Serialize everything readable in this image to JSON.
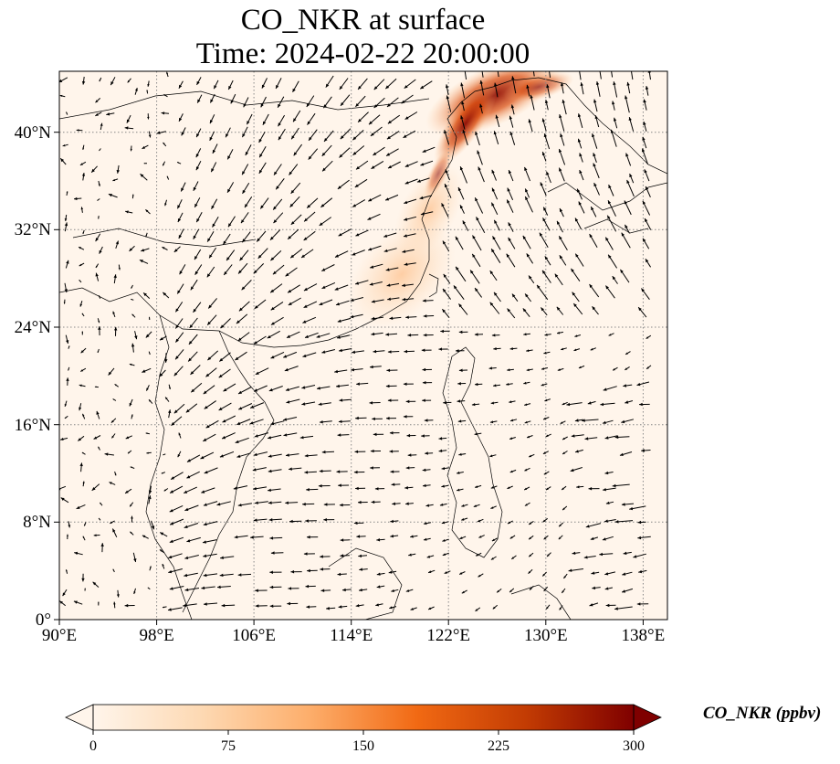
{
  "title": {
    "line1": "CO_NKR at surface",
    "line2": "Time: 2024-02-22 20:00:00"
  },
  "map": {
    "lon_range": [
      90,
      140
    ],
    "lat_range": [
      0,
      45
    ],
    "x_ticks": [
      {
        "value": 90,
        "label": "90°E"
      },
      {
        "value": 98,
        "label": "98°E"
      },
      {
        "value": 106,
        "label": "106°E"
      },
      {
        "value": 114,
        "label": "114°E"
      },
      {
        "value": 122,
        "label": "122°E"
      },
      {
        "value": 130,
        "label": "130°E"
      },
      {
        "value": 138,
        "label": "138°E"
      }
    ],
    "y_ticks": [
      {
        "value": 0,
        "label": "0°"
      },
      {
        "value": 8,
        "label": "8°N"
      },
      {
        "value": 16,
        "label": "16°N"
      },
      {
        "value": 24,
        "label": "24°N"
      },
      {
        "value": 32,
        "label": "32°N"
      },
      {
        "value": 40,
        "label": "40°N"
      }
    ],
    "gridlines": "dotted",
    "background_color": "#fff5eb",
    "wind_vectors": "black arrows"
  },
  "colorbar": {
    "label": "CO_NKR (ppbv)",
    "min": 0,
    "max": 300,
    "ticks": [
      {
        "value": 0,
        "label": "0"
      },
      {
        "value": 75,
        "label": "75"
      },
      {
        "value": 150,
        "label": "150"
      },
      {
        "value": 225,
        "label": "225"
      },
      {
        "value": 300,
        "label": "300"
      }
    ],
    "extend": "both",
    "colormap": [
      "#fff5eb",
      "#fdd2a5",
      "#fd9243",
      "#df5005",
      "#a33003",
      "#7f0000"
    ]
  }
}
